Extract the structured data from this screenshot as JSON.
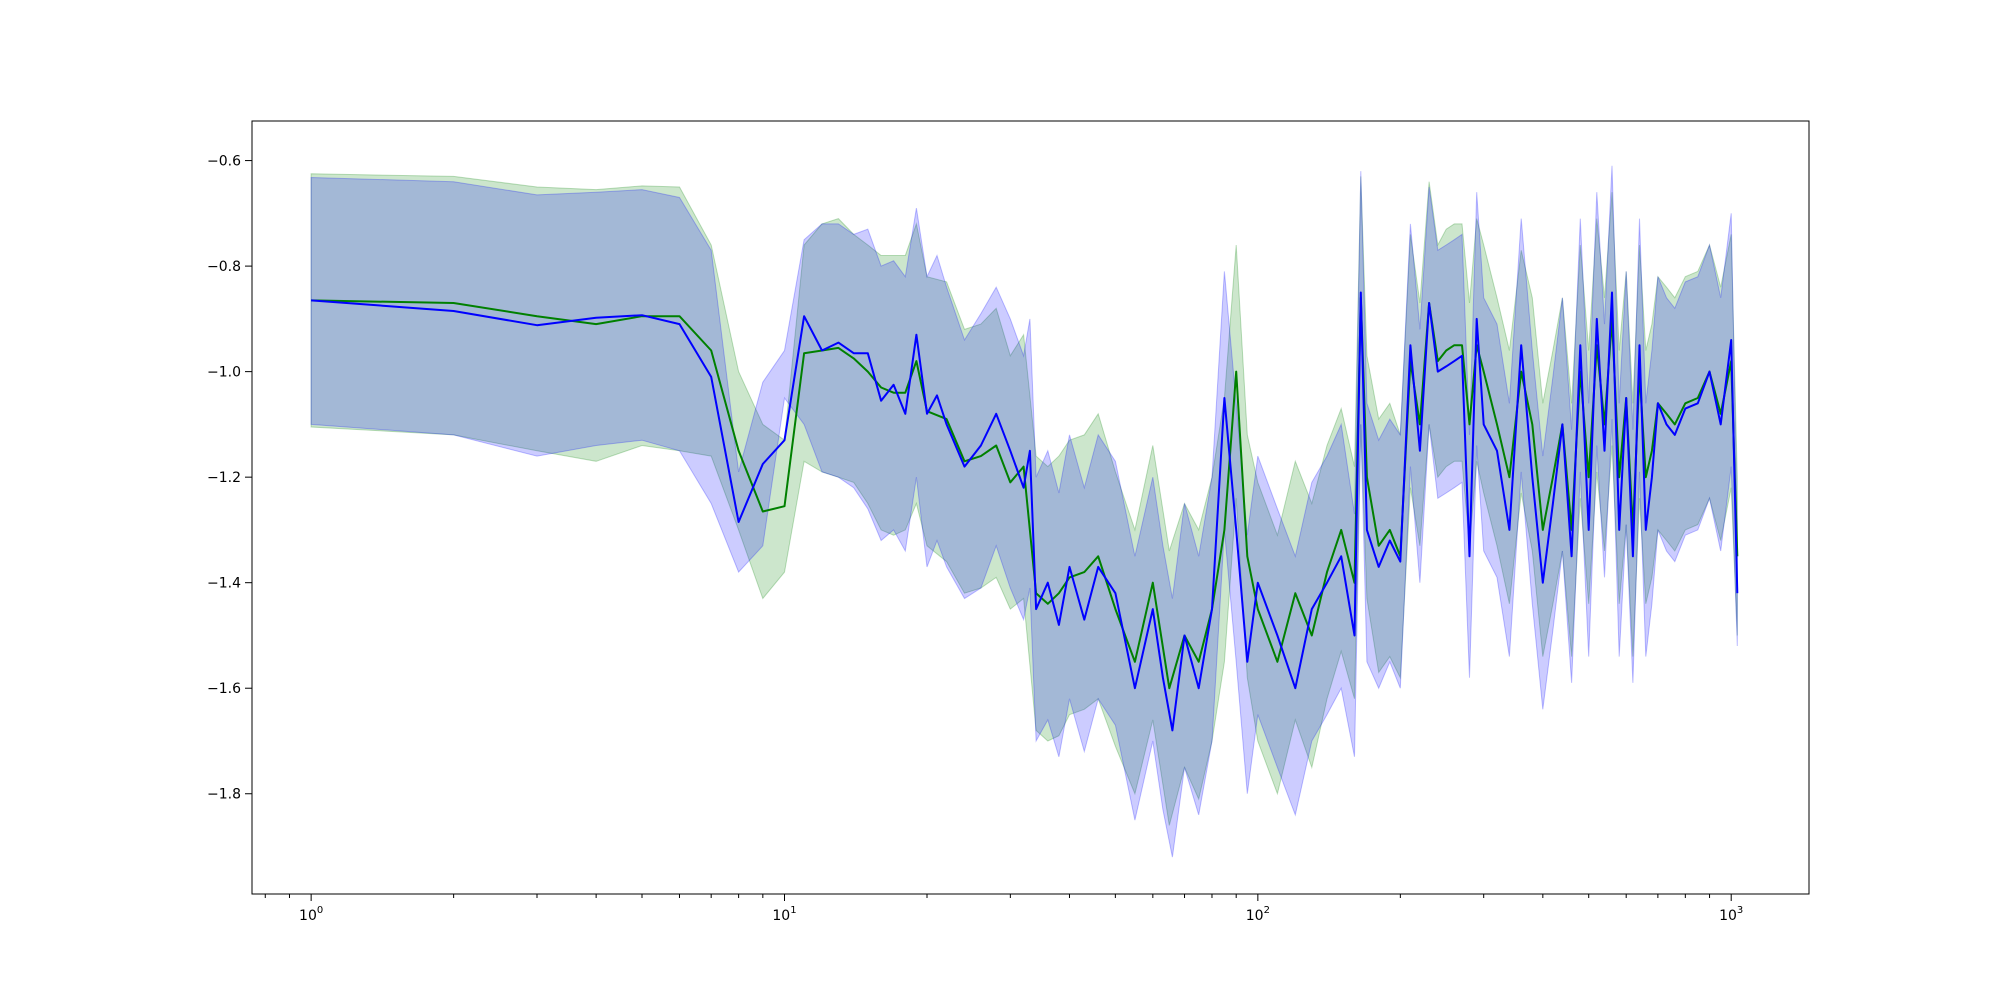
{
  "chart_data": {
    "type": "line",
    "title": "",
    "xlabel": "",
    "ylabel": "",
    "xscale": "log",
    "xlim": [
      0.75,
      1460
    ],
    "ylim": [
      -1.99,
      -0.525
    ],
    "grid": false,
    "legend": "none",
    "x_ticks": [
      {
        "value": 1,
        "base": "10",
        "exp": "0"
      },
      {
        "value": 10,
        "base": "10",
        "exp": "1"
      },
      {
        "value": 100,
        "base": "10",
        "exp": "2"
      },
      {
        "value": 1000,
        "base": "10",
        "exp": "3"
      }
    ],
    "y_ticks": [
      {
        "value": -0.6,
        "label": "−0.6"
      },
      {
        "value": -0.8,
        "label": "−0.8"
      },
      {
        "value": -1.0,
        "label": "−1.0"
      },
      {
        "value": -1.2,
        "label": "−1.2"
      },
      {
        "value": -1.4,
        "label": "−1.4"
      },
      {
        "value": -1.6,
        "label": "−1.6"
      },
      {
        "value": -1.8,
        "label": "−1.8"
      }
    ],
    "series": [
      {
        "color": "#008000",
        "band_color": "#008000",
        "band_opacity": 0.2,
        "x": [
          1,
          2,
          3,
          4,
          5,
          6,
          7,
          8,
          9,
          10,
          11,
          12,
          13,
          14,
          15,
          16,
          17,
          18,
          19,
          20,
          22,
          24,
          26,
          28,
          30,
          32,
          34,
          36,
          38,
          40,
          43,
          46,
          50,
          55,
          60,
          65,
          70,
          75,
          80,
          85,
          90,
          95,
          100,
          110,
          120,
          130,
          140,
          150,
          160,
          165,
          170,
          180,
          190,
          200,
          210,
          220,
          230,
          240,
          250,
          260,
          270,
          280,
          290,
          300,
          320,
          340,
          360,
          380,
          400,
          420,
          440,
          460,
          480,
          500,
          520,
          540,
          560,
          580,
          600,
          620,
          640,
          660,
          680,
          700,
          730,
          760,
          800,
          850,
          900,
          950,
          1000,
          1030
        ],
        "y": [
          -0.865,
          -0.87,
          -0.895,
          -0.91,
          -0.895,
          -0.895,
          -0.96,
          -1.15,
          -1.265,
          -1.255,
          -0.965,
          -0.96,
          -0.955,
          -0.975,
          -1.0,
          -1.03,
          -1.04,
          -1.04,
          -0.98,
          -1.075,
          -1.09,
          -1.17,
          -1.16,
          -1.14,
          -1.21,
          -1.18,
          -1.42,
          -1.44,
          -1.42,
          -1.39,
          -1.38,
          -1.35,
          -1.45,
          -1.55,
          -1.4,
          -1.6,
          -1.5,
          -1.55,
          -1.45,
          -1.3,
          -1.0,
          -1.35,
          -1.45,
          -1.55,
          -1.42,
          -1.5,
          -1.38,
          -1.3,
          -1.4,
          -0.86,
          -1.2,
          -1.33,
          -1.3,
          -1.35,
          -0.98,
          -1.1,
          -0.87,
          -0.98,
          -0.96,
          -0.95,
          -0.95,
          -1.1,
          -0.95,
          -1.0,
          -1.1,
          -1.2,
          -1.0,
          -1.1,
          -1.3,
          -1.2,
          -1.1,
          -1.3,
          -1.0,
          -1.2,
          -0.95,
          -1.1,
          -0.9,
          -1.2,
          -1.05,
          -1.3,
          -1.0,
          -1.2,
          -1.15,
          -1.06,
          -1.08,
          -1.1,
          -1.06,
          -1.05,
          -1.0,
          -1.08,
          -0.98,
          -1.35
        ],
        "lower": [
          -1.105,
          -1.12,
          -1.15,
          -1.17,
          -1.14,
          -1.15,
          -1.16,
          -1.3,
          -1.43,
          -1.38,
          -1.17,
          -1.19,
          -1.2,
          -1.21,
          -1.25,
          -1.3,
          -1.31,
          -1.3,
          -1.25,
          -1.33,
          -1.36,
          -1.42,
          -1.41,
          -1.39,
          -1.45,
          -1.43,
          -1.68,
          -1.7,
          -1.69,
          -1.65,
          -1.64,
          -1.62,
          -1.71,
          -1.8,
          -1.66,
          -1.86,
          -1.75,
          -1.81,
          -1.7,
          -1.55,
          -1.24,
          -1.58,
          -1.7,
          -1.8,
          -1.66,
          -1.75,
          -1.62,
          -1.53,
          -1.62,
          -1.1,
          -1.43,
          -1.57,
          -1.54,
          -1.58,
          -1.22,
          -1.33,
          -1.1,
          -1.2,
          -1.18,
          -1.17,
          -1.17,
          -1.33,
          -1.17,
          -1.23,
          -1.33,
          -1.44,
          -1.23,
          -1.34,
          -1.54,
          -1.44,
          -1.34,
          -1.54,
          -1.24,
          -1.44,
          -1.19,
          -1.34,
          -1.14,
          -1.44,
          -1.29,
          -1.54,
          -1.24,
          -1.44,
          -1.39,
          -1.3,
          -1.32,
          -1.34,
          -1.3,
          -1.29,
          -1.24,
          -1.32,
          -1.22,
          -1.5
        ],
        "upper": [
          -0.625,
          -0.63,
          -0.65,
          -0.655,
          -0.648,
          -0.65,
          -0.76,
          -1.0,
          -1.1,
          -1.13,
          -0.76,
          -0.72,
          -0.71,
          -0.74,
          -0.76,
          -0.78,
          -0.78,
          -0.78,
          -0.72,
          -0.82,
          -0.83,
          -0.92,
          -0.91,
          -0.88,
          -0.97,
          -0.93,
          -1.16,
          -1.18,
          -1.16,
          -1.13,
          -1.12,
          -1.08,
          -1.19,
          -1.3,
          -1.14,
          -1.34,
          -1.25,
          -1.3,
          -1.2,
          -1.05,
          -0.76,
          -1.12,
          -1.21,
          -1.31,
          -1.17,
          -1.25,
          -1.14,
          -1.07,
          -1.18,
          -0.63,
          -0.97,
          -1.09,
          -1.06,
          -1.12,
          -0.74,
          -0.87,
          -0.64,
          -0.76,
          -0.73,
          -0.72,
          -0.72,
          -0.87,
          -0.71,
          -0.76,
          -0.86,
          -0.96,
          -0.77,
          -0.86,
          -1.06,
          -0.96,
          -0.86,
          -1.06,
          -0.76,
          -0.96,
          -0.71,
          -0.86,
          -0.66,
          -0.96,
          -0.81,
          -1.06,
          -0.76,
          -0.96,
          -0.91,
          -0.82,
          -0.84,
          -0.86,
          -0.82,
          -0.81,
          -0.76,
          -0.84,
          -0.74,
          -1.2
        ]
      },
      {
        "color": "#0000ff",
        "band_color": "#0000ff",
        "band_opacity": 0.2,
        "x": [
          1,
          2,
          3,
          4,
          5,
          6,
          7,
          8,
          9,
          10,
          11,
          12,
          13,
          14,
          15,
          16,
          17,
          18,
          19,
          20,
          21,
          22,
          24,
          26,
          28,
          30,
          32,
          33,
          34,
          36,
          38,
          40,
          43,
          46,
          50,
          55,
          60,
          63,
          66,
          70,
          75,
          80,
          85,
          90,
          95,
          100,
          110,
          120,
          130,
          140,
          150,
          160,
          165,
          170,
          180,
          190,
          200,
          210,
          220,
          230,
          240,
          250,
          260,
          270,
          280,
          290,
          300,
          320,
          340,
          360,
          380,
          400,
          420,
          440,
          460,
          480,
          500,
          520,
          540,
          560,
          580,
          600,
          620,
          640,
          660,
          680,
          700,
          730,
          760,
          800,
          850,
          900,
          950,
          1000,
          1030
        ],
        "y": [
          -0.865,
          -0.885,
          -0.912,
          -0.898,
          -0.893,
          -0.91,
          -1.01,
          -1.285,
          -1.175,
          -1.13,
          -0.895,
          -0.96,
          -0.945,
          -0.965,
          -0.965,
          -1.055,
          -1.025,
          -1.08,
          -0.93,
          -1.08,
          -1.045,
          -1.1,
          -1.18,
          -1.14,
          -1.08,
          -1.15,
          -1.22,
          -1.15,
          -1.45,
          -1.4,
          -1.48,
          -1.37,
          -1.47,
          -1.37,
          -1.42,
          -1.6,
          -1.45,
          -1.58,
          -1.68,
          -1.5,
          -1.6,
          -1.45,
          -1.05,
          -1.3,
          -1.55,
          -1.4,
          -1.5,
          -1.6,
          -1.45,
          -1.4,
          -1.35,
          -1.5,
          -0.85,
          -1.3,
          -1.37,
          -1.32,
          -1.36,
          -0.95,
          -1.15,
          -0.87,
          -1.0,
          -0.99,
          -0.98,
          -0.97,
          -1.35,
          -0.9,
          -1.1,
          -1.15,
          -1.3,
          -0.95,
          -1.2,
          -1.4,
          -1.25,
          -1.1,
          -1.35,
          -0.95,
          -1.3,
          -0.9,
          -1.15,
          -0.85,
          -1.3,
          -1.05,
          -1.35,
          -0.95,
          -1.3,
          -1.2,
          -1.06,
          -1.1,
          -1.12,
          -1.07,
          -1.06,
          -1.0,
          -1.1,
          -0.94,
          -1.42
        ],
        "lower": [
          -1.1,
          -1.12,
          -1.16,
          -1.14,
          -1.13,
          -1.15,
          -1.25,
          -1.38,
          -1.33,
          -1.05,
          -1.1,
          -1.19,
          -1.2,
          -1.22,
          -1.26,
          -1.32,
          -1.3,
          -1.34,
          -1.2,
          -1.37,
          -1.32,
          -1.37,
          -1.43,
          -1.41,
          -1.33,
          -1.41,
          -1.47,
          -1.41,
          -1.7,
          -1.66,
          -1.73,
          -1.62,
          -1.72,
          -1.62,
          -1.67,
          -1.85,
          -1.7,
          -1.83,
          -1.92,
          -1.75,
          -1.84,
          -1.7,
          -1.3,
          -1.55,
          -1.8,
          -1.65,
          -1.75,
          -1.84,
          -1.7,
          -1.65,
          -1.6,
          -1.73,
          -1.1,
          -1.55,
          -1.6,
          -1.55,
          -1.6,
          -1.18,
          -1.4,
          -1.1,
          -1.24,
          -1.23,
          -1.22,
          -1.21,
          -1.58,
          -1.14,
          -1.34,
          -1.39,
          -1.54,
          -1.19,
          -1.44,
          -1.64,
          -1.49,
          -1.34,
          -1.59,
          -1.19,
          -1.54,
          -1.14,
          -1.39,
          -1.09,
          -1.54,
          -1.29,
          -1.59,
          -1.19,
          -1.54,
          -1.44,
          -1.3,
          -1.34,
          -1.36,
          -1.31,
          -1.3,
          -1.24,
          -1.34,
          -1.18,
          -1.52
        ],
        "upper": [
          -0.632,
          -0.64,
          -0.665,
          -0.66,
          -0.655,
          -0.67,
          -0.77,
          -1.19,
          -1.02,
          -0.96,
          -0.75,
          -0.72,
          -0.72,
          -0.74,
          -0.73,
          -0.8,
          -0.79,
          -0.82,
          -0.69,
          -0.82,
          -0.78,
          -0.84,
          -0.94,
          -0.89,
          -0.84,
          -0.9,
          -0.97,
          -0.9,
          -1.2,
          -1.15,
          -1.23,
          -1.12,
          -1.22,
          -1.12,
          -1.17,
          -1.35,
          -1.2,
          -1.33,
          -1.43,
          -1.25,
          -1.35,
          -1.2,
          -0.81,
          -1.06,
          -1.31,
          -1.16,
          -1.26,
          -1.35,
          -1.21,
          -1.16,
          -1.1,
          -1.27,
          -0.62,
          -1.06,
          -1.13,
          -1.09,
          -1.12,
          -0.72,
          -0.92,
          -0.65,
          -0.77,
          -0.76,
          -0.75,
          -0.74,
          -1.12,
          -0.66,
          -0.86,
          -0.91,
          -1.06,
          -0.71,
          -0.96,
          -1.16,
          -1.01,
          -0.86,
          -1.11,
          -0.71,
          -1.06,
          -0.66,
          -0.91,
          -0.61,
          -1.06,
          -0.81,
          -1.11,
          -0.71,
          -1.06,
          -0.96,
          -0.82,
          -0.86,
          -0.88,
          -0.83,
          -0.82,
          -0.76,
          -0.86,
          -0.7,
          -1.3
        ]
      }
    ]
  }
}
